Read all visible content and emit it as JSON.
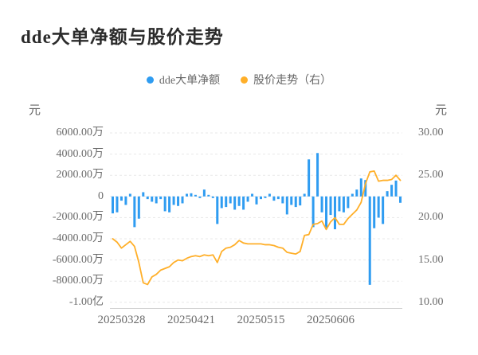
{
  "title": "dde大单净额与股价走势",
  "chart_data": {
    "type": "combo",
    "title": "dde大单净额与股价走势",
    "legend_position": "top-center",
    "grid": "horizontal-dashed",
    "x_tick_labels": [
      "20250328",
      "20250421",
      "20250515",
      "20250606"
    ],
    "x_tick_indices": [
      2,
      18,
      34,
      50
    ],
    "left_axis": {
      "unit": "元",
      "tick_labels": [
        "6000.00万",
        "4000.00万",
        "2000.00万",
        "0",
        "-2000.00万",
        "-4000.00万",
        "-6000.00万",
        "-8000.00万",
        "-1.00亿"
      ],
      "range_wan": [
        -10000,
        6000
      ]
    },
    "right_axis": {
      "unit": "元",
      "tick_labels": [
        "30.00",
        "25.00",
        "20.00",
        "15.00",
        "10.00"
      ],
      "range": [
        10,
        30
      ]
    },
    "series": [
      {
        "name": "dde大单净额",
        "type": "bar",
        "axis": "left",
        "unit": "万元",
        "color": "#2f9cf1",
        "values": [
          -1600,
          -1500,
          -400,
          -800,
          250,
          -2900,
          -2100,
          400,
          -250,
          -500,
          -650,
          -250,
          -1400,
          -1500,
          -800,
          -900,
          -650,
          250,
          300,
          150,
          -150,
          650,
          150,
          -150,
          -2600,
          -1100,
          -1000,
          -650,
          -1250,
          -900,
          -1250,
          -500,
          250,
          -750,
          -250,
          -150,
          250,
          -400,
          -250,
          -650,
          -1700,
          -800,
          -1000,
          -850,
          250,
          3500,
          -2900,
          4100,
          -1500,
          -3100,
          -1750,
          -3100,
          -1400,
          -1500,
          -1100,
          250,
          650,
          1700,
          1550,
          -8350,
          -3000,
          -2000,
          -2600,
          500,
          1100,
          1500,
          -600
        ]
      },
      {
        "name": "股价走势（右）",
        "type": "line",
        "axis": "right",
        "unit": "元",
        "color": "#ffaf29",
        "values": [
          17.5,
          17.1,
          16.4,
          16.8,
          17.2,
          16.6,
          14.7,
          12.3,
          12.1,
          13.0,
          13.3,
          13.8,
          14.0,
          14.2,
          14.7,
          15.0,
          14.9,
          15.2,
          15.4,
          15.5,
          15.4,
          15.6,
          15.5,
          15.6,
          14.7,
          16.0,
          16.4,
          16.5,
          16.8,
          17.3,
          17.0,
          16.9,
          16.9,
          16.9,
          16.9,
          16.8,
          16.8,
          16.7,
          16.5,
          16.4,
          15.9,
          15.8,
          15.7,
          16.0,
          17.9,
          18.0,
          19.2,
          19.3,
          19.6,
          18.6,
          19.5,
          20.0,
          19.2,
          19.2,
          19.9,
          20.4,
          20.9,
          21.8,
          24.0,
          25.4,
          25.5,
          24.3,
          24.4,
          24.4,
          24.5,
          25.0,
          24.4
        ]
      }
    ]
  }
}
